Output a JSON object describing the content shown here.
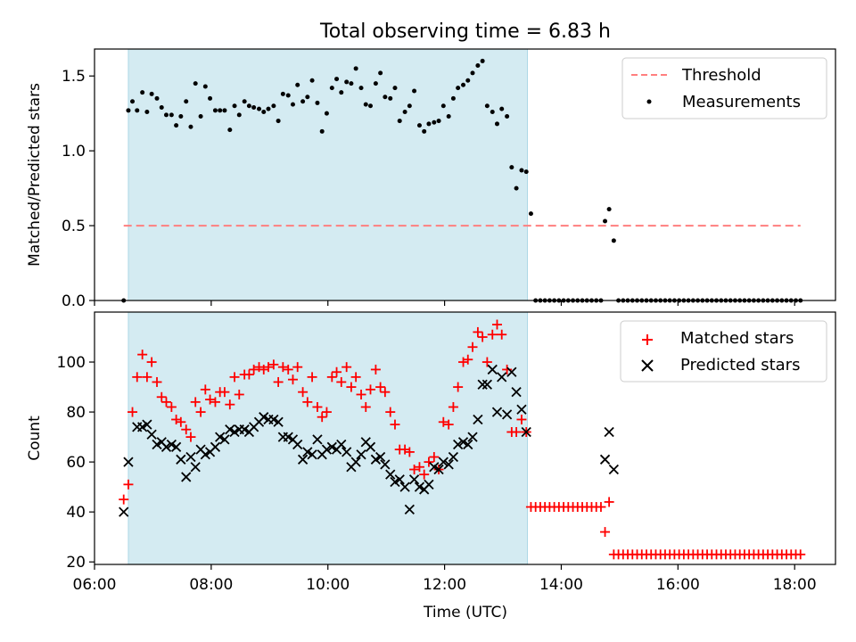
{
  "figure": {
    "title": "Total observing time = 6.83 h"
  },
  "chart_data": [
    {
      "type": "scatter",
      "title": "Total observing time = 6.83 h",
      "xlabel": "",
      "ylabel": "Matched/Predicted stars",
      "xlim": [
        6.0,
        18.7
      ],
      "ylim": [
        0,
        1.68
      ],
      "yticks": [
        0.0,
        0.5,
        1.0,
        1.5
      ],
      "ytick_labels": [
        "0.0",
        "0.5",
        "1.0",
        "1.5"
      ],
      "legend_position": "top-right",
      "shaded_interval": {
        "x": [
          6.58,
          13.42
        ],
        "color": "#add8e6"
      },
      "threshold": {
        "name": "Threshold",
        "y": 0.5,
        "x": [
          6.5,
          18.1
        ],
        "color": "#ff7f7f",
        "style": "dashed"
      },
      "series": [
        {
          "name": "Measurements",
          "color": "#000000",
          "marker": "dot",
          "x": [
            6.5,
            6.58,
            6.65,
            6.73,
            6.82,
            6.9,
            6.98,
            7.07,
            7.15,
            7.23,
            7.32,
            7.4,
            7.48,
            7.57,
            7.65,
            7.73,
            7.82,
            7.9,
            7.98,
            8.07,
            8.15,
            8.23,
            8.32,
            8.4,
            8.48,
            8.57,
            8.65,
            8.73,
            8.82,
            8.9,
            8.98,
            9.07,
            9.15,
            9.23,
            9.32,
            9.4,
            9.48,
            9.57,
            9.65,
            9.73,
            9.82,
            9.9,
            9.98,
            10.07,
            10.15,
            10.23,
            10.32,
            10.4,
            10.48,
            10.57,
            10.65,
            10.73,
            10.82,
            10.9,
            10.98,
            11.07,
            11.15,
            11.23,
            11.32,
            11.4,
            11.48,
            11.57,
            11.65,
            11.73,
            11.82,
            11.9,
            11.98,
            12.07,
            12.15,
            12.23,
            12.32,
            12.4,
            12.48,
            12.57,
            12.65,
            12.73,
            12.82,
            12.9,
            12.98,
            13.07,
            13.15,
            13.23,
            13.32,
            13.4,
            13.48,
            13.56,
            13.64,
            13.72,
            13.8,
            13.88,
            13.96,
            14.04,
            14.12,
            14.2,
            14.28,
            14.36,
            14.44,
            14.52,
            14.6,
            14.68,
            14.75,
            14.82,
            14.9,
            14.98,
            15.06,
            15.14,
            15.22,
            15.3,
            15.38,
            15.46,
            15.54,
            15.62,
            15.7,
            15.78,
            15.86,
            15.94,
            16.02,
            16.1,
            16.18,
            16.26,
            16.34,
            16.42,
            16.5,
            16.58,
            16.66,
            16.74,
            16.82,
            16.9,
            16.98,
            17.06,
            17.14,
            17.22,
            17.3,
            17.38,
            17.46,
            17.54,
            17.62,
            17.7,
            17.78,
            17.86,
            17.94,
            18.02,
            18.1
          ],
          "y": [
            0.0,
            1.27,
            1.33,
            1.27,
            1.39,
            1.26,
            1.38,
            1.35,
            1.29,
            1.24,
            1.24,
            1.17,
            1.23,
            1.33,
            1.16,
            1.45,
            1.23,
            1.43,
            1.35,
            1.27,
            1.27,
            1.27,
            1.14,
            1.3,
            1.24,
            1.33,
            1.3,
            1.29,
            1.28,
            1.26,
            1.28,
            1.3,
            1.2,
            1.38,
            1.37,
            1.31,
            1.44,
            1.33,
            1.36,
            1.47,
            1.32,
            1.13,
            1.25,
            1.42,
            1.48,
            1.39,
            1.46,
            1.45,
            1.55,
            1.42,
            1.31,
            1.3,
            1.45,
            1.52,
            1.36,
            1.35,
            1.42,
            1.2,
            1.26,
            1.3,
            1.4,
            1.17,
            1.13,
            1.18,
            1.19,
            1.2,
            1.3,
            1.23,
            1.35,
            1.42,
            1.44,
            1.47,
            1.52,
            1.57,
            1.6,
            1.3,
            1.26,
            1.18,
            1.28,
            1.23,
            0.89,
            0.75,
            0.87,
            0.86,
            0.58,
            0.0,
            0.0,
            0.0,
            0.0,
            0.0,
            0.0,
            0.0,
            0.0,
            0.0,
            0.0,
            0.0,
            0.0,
            0.0,
            0.0,
            0.0,
            0.53,
            0.61,
            0.4,
            0.0,
            0.0,
            0.0,
            0.0,
            0.0,
            0.0,
            0.0,
            0.0,
            0.0,
            0.0,
            0.0,
            0.0,
            0.0,
            0.0,
            0.0,
            0.0,
            0.0,
            0.0,
            0.0,
            0.0,
            0.0,
            0.0,
            0.0,
            0.0,
            0.0,
            0.0,
            0.0,
            0.0,
            0.0,
            0.0,
            0.0,
            0.0,
            0.0,
            0.0,
            0.0,
            0.0,
            0.0,
            0.0,
            0.0,
            0.0
          ]
        }
      ]
    },
    {
      "type": "scatter",
      "title": "",
      "xlabel": "Time (UTC)",
      "ylabel": "Count",
      "xlim": [
        6.0,
        18.7
      ],
      "ylim": [
        19,
        120
      ],
      "xticks": [
        6,
        8,
        10,
        12,
        14,
        16,
        18
      ],
      "xtick_labels": [
        "06:00",
        "08:00",
        "10:00",
        "12:00",
        "14:00",
        "16:00",
        "18:00"
      ],
      "yticks": [
        20,
        40,
        60,
        80,
        100
      ],
      "ytick_labels": [
        "20",
        "40",
        "60",
        "80",
        "100"
      ],
      "legend_position": "top-right",
      "shaded_interval": {
        "x": [
          6.58,
          13.42
        ],
        "color": "#add8e6"
      },
      "series": [
        {
          "name": "Matched stars",
          "color": "#ff0000",
          "marker": "plus",
          "x": [
            6.5,
            6.58,
            6.65,
            6.73,
            6.82,
            6.9,
            6.98,
            7.07,
            7.15,
            7.23,
            7.32,
            7.4,
            7.48,
            7.57,
            7.65,
            7.73,
            7.82,
            7.9,
            7.98,
            8.07,
            8.15,
            8.23,
            8.32,
            8.4,
            8.48,
            8.57,
            8.65,
            8.73,
            8.82,
            8.9,
            8.98,
            9.07,
            9.15,
            9.23,
            9.32,
            9.4,
            9.48,
            9.57,
            9.65,
            9.73,
            9.82,
            9.9,
            9.98,
            10.07,
            10.15,
            10.23,
            10.32,
            10.4,
            10.48,
            10.57,
            10.65,
            10.73,
            10.82,
            10.9,
            10.98,
            11.07,
            11.15,
            11.23,
            11.32,
            11.4,
            11.48,
            11.57,
            11.65,
            11.73,
            11.82,
            11.9,
            11.98,
            12.07,
            12.15,
            12.23,
            12.32,
            12.4,
            12.48,
            12.57,
            12.65,
            12.73,
            12.82,
            12.9,
            12.98,
            13.07,
            13.15,
            13.23,
            13.32,
            13.4,
            13.48,
            13.56,
            13.64,
            13.72,
            13.8,
            13.88,
            13.96,
            14.04,
            14.12,
            14.2,
            14.28,
            14.36,
            14.44,
            14.52,
            14.6,
            14.68,
            14.75,
            14.82,
            14.9,
            14.98,
            15.06,
            15.14,
            15.22,
            15.3,
            15.38,
            15.46,
            15.54,
            15.62,
            15.7,
            15.78,
            15.86,
            15.94,
            16.02,
            16.1,
            16.18,
            16.26,
            16.34,
            16.42,
            16.5,
            16.58,
            16.66,
            16.74,
            16.82,
            16.9,
            16.98,
            17.06,
            17.14,
            17.22,
            17.3,
            17.38,
            17.46,
            17.54,
            17.62,
            17.7,
            17.78,
            17.86,
            17.94,
            18.02,
            18.1
          ],
          "y": [
            45,
            51,
            80,
            94,
            103,
            94,
            100,
            92,
            86,
            84,
            82,
            77,
            76,
            73,
            70,
            84,
            80,
            89,
            85,
            84,
            88,
            88,
            83,
            94,
            87,
            95,
            95,
            97,
            98,
            97,
            98,
            99,
            92,
            98,
            97,
            93,
            98,
            88,
            84,
            94,
            82,
            78,
            80,
            94,
            96,
            92,
            98,
            90,
            94,
            87,
            82,
            89,
            97,
            90,
            88,
            80,
            75,
            65,
            65,
            64,
            57,
            58,
            55,
            60,
            62,
            57,
            76,
            75,
            82,
            90,
            100,
            101,
            106,
            112,
            110,
            100,
            111,
            115,
            111,
            97,
            72,
            72,
            77,
            72,
            42,
            42,
            42,
            42,
            42,
            42,
            42,
            42,
            42,
            42,
            42,
            42,
            42,
            42,
            42,
            42,
            32,
            44,
            23,
            23,
            23,
            23,
            23,
            23,
            23,
            23,
            23,
            23,
            23,
            23,
            23,
            23,
            23,
            23,
            23,
            23,
            23,
            23,
            23,
            23,
            23,
            23,
            23,
            23,
            23,
            23,
            23,
            23,
            23,
            23,
            23,
            23,
            23,
            23,
            23,
            23,
            23,
            23,
            23
          ]
        },
        {
          "name": "Predicted stars",
          "color": "#000000",
          "marker": "x",
          "x": [
            6.5,
            6.58,
            6.73,
            6.82,
            6.9,
            6.98,
            7.07,
            7.15,
            7.23,
            7.32,
            7.4,
            7.48,
            7.57,
            7.65,
            7.73,
            7.82,
            7.9,
            7.98,
            8.07,
            8.15,
            8.23,
            8.32,
            8.4,
            8.48,
            8.57,
            8.65,
            8.73,
            8.82,
            8.9,
            8.98,
            9.07,
            9.15,
            9.23,
            9.32,
            9.4,
            9.48,
            9.57,
            9.65,
            9.73,
            9.82,
            9.9,
            9.98,
            10.07,
            10.15,
            10.23,
            10.32,
            10.4,
            10.48,
            10.57,
            10.65,
            10.73,
            10.82,
            10.9,
            10.98,
            11.07,
            11.15,
            11.23,
            11.32,
            11.4,
            11.48,
            11.57,
            11.65,
            11.73,
            11.82,
            11.9,
            11.98,
            12.07,
            12.15,
            12.23,
            12.32,
            12.4,
            12.48,
            12.57,
            12.65,
            12.73,
            12.82,
            12.9,
            12.98,
            13.07,
            13.15,
            13.23,
            13.32,
            13.4,
            14.75,
            14.82,
            14.9
          ],
          "y": [
            40,
            60,
            74,
            74,
            75,
            71,
            67,
            68,
            66,
            67,
            66,
            61,
            54,
            62,
            58,
            65,
            63,
            64,
            66,
            70,
            69,
            73,
            72,
            73,
            73,
            72,
            74,
            76,
            78,
            77,
            77,
            76,
            70,
            70,
            69,
            67,
            61,
            64,
            63,
            69,
            63,
            65,
            66,
            65,
            67,
            64,
            58,
            60,
            63,
            68,
            66,
            61,
            62,
            59,
            55,
            52,
            53,
            50,
            41,
            53,
            50,
            49,
            51,
            58,
            57,
            60,
            59,
            62,
            67,
            68,
            67,
            70,
            77,
            91,
            91,
            97,
            80,
            94,
            79,
            96,
            88,
            81,
            72,
            61,
            72,
            57
          ]
        }
      ]
    }
  ]
}
